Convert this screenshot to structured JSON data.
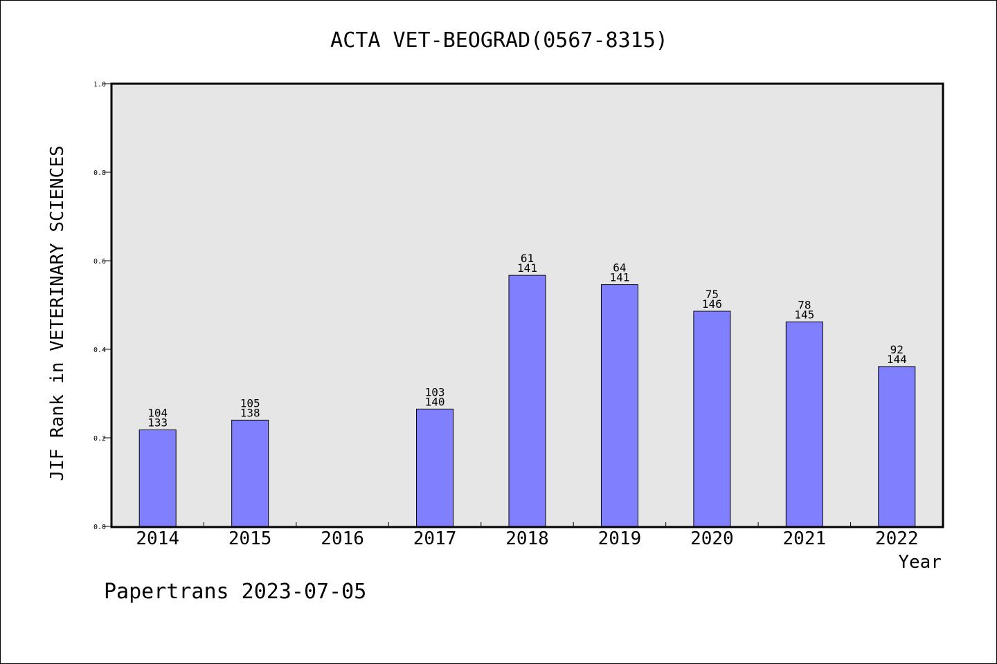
{
  "chart_data": {
    "type": "bar",
    "title": "ACTA VET-BEOGRAD(0567-8315)",
    "xlabel": "Year",
    "ylabel": "JIF Rank in VETERINARY SCIENCES",
    "footer": "Papertrans 2023-07-05",
    "ylim": [
      0,
      1.0
    ],
    "yticks": [
      "0.0",
      "0.2",
      "0.4",
      "0.6",
      "0.8",
      "1.0"
    ],
    "categories": [
      "2014",
      "2015",
      "2016",
      "2017",
      "2018",
      "2019",
      "2020",
      "2021",
      "2022"
    ],
    "values": [
      0.218,
      0.24,
      null,
      0.265,
      0.567,
      0.546,
      0.486,
      0.462,
      0.361
    ],
    "rank_labels": [
      "104",
      "105",
      "",
      "103",
      "61",
      "64",
      "75",
      "78",
      "92"
    ],
    "total_labels": [
      "133",
      "138",
      "",
      "140",
      "141",
      "141",
      "146",
      "145",
      "144"
    ],
    "grid": false,
    "colors": {
      "bar_fill": "#8080ff",
      "plot_background": "#e6e6e6",
      "axis": "#000000"
    }
  }
}
